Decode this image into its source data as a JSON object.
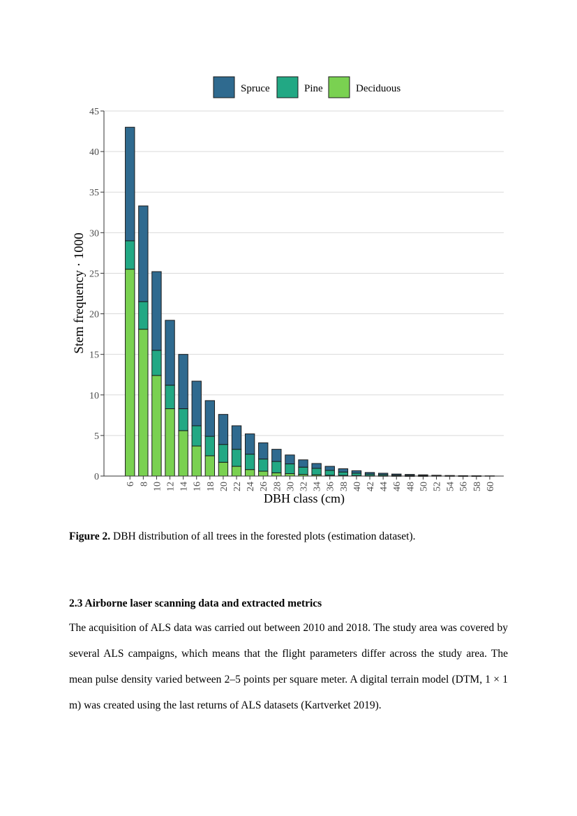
{
  "chart_data": {
    "type": "bar",
    "stacked": true,
    "ylabel": "Stem frequency · 1000",
    "xlabel": "DBH class (cm)",
    "ylim": [
      0,
      45
    ],
    "yticks": [
      0,
      5,
      10,
      15,
      20,
      25,
      30,
      35,
      40,
      45
    ],
    "grid": "horizontal",
    "legend_position": "top",
    "categories": [
      "6",
      "8",
      "10",
      "12",
      "14",
      "16",
      "18",
      "20",
      "22",
      "24",
      "26",
      "28",
      "30",
      "32",
      "34",
      "36",
      "38",
      "40",
      "42",
      "44",
      "46",
      "48",
      "50",
      "52",
      "54",
      "56",
      "58",
      "60"
    ],
    "series": [
      {
        "name": "Deciduous",
        "color": "#7ad151",
        "values": [
          25.5,
          18.1,
          12.4,
          8.3,
          5.6,
          3.7,
          2.5,
          1.7,
          1.2,
          0.8,
          0.6,
          0.4,
          0.3,
          0.2,
          0.15,
          0.1,
          0.08,
          0.06,
          0.04,
          0.03,
          0.02,
          0.01,
          0.01,
          0,
          0,
          0,
          0,
          0
        ]
      },
      {
        "name": "Pine",
        "color": "#22a884",
        "values": [
          3.5,
          3.4,
          3.1,
          2.9,
          2.7,
          2.5,
          2.4,
          2.2,
          2.1,
          1.9,
          1.5,
          1.4,
          1.2,
          0.9,
          0.8,
          0.6,
          0.42,
          0.3,
          0.2,
          0.15,
          0.1,
          0.08,
          0.05,
          0.03,
          0.02,
          0.01,
          0.01,
          0
        ]
      },
      {
        "name": "Spruce",
        "color": "#2f6a8f",
        "values": [
          14,
          11.8,
          9.7,
          8,
          6.7,
          5.5,
          4.4,
          3.7,
          2.9,
          2.5,
          2.0,
          1.5,
          1.1,
          0.9,
          0.6,
          0.5,
          0.4,
          0.3,
          0.2,
          0.17,
          0.13,
          0.11,
          0.09,
          0.07,
          0.05,
          0.04,
          0.03,
          0.03
        ]
      }
    ],
    "legend_order": [
      "Spruce",
      "Pine",
      "Deciduous"
    ]
  },
  "caption": {
    "label": "Figure 2.",
    "text": " DBH distribution of all trees in the forested plots (estimation dataset)."
  },
  "section": {
    "heading": "2.3 Airborne laser scanning data and extracted metrics",
    "paragraph": "The acquisition of ALS data was carried out between 2010 and 2018. The study area was covered by several ALS campaigns, which means that the flight parameters differ across the study area. The mean pulse density varied between 2–5 points per square meter. A digital terrain model (DTM, 1 × 1 m) was created using the last returns of ALS datasets (Kartverket 2019)."
  }
}
